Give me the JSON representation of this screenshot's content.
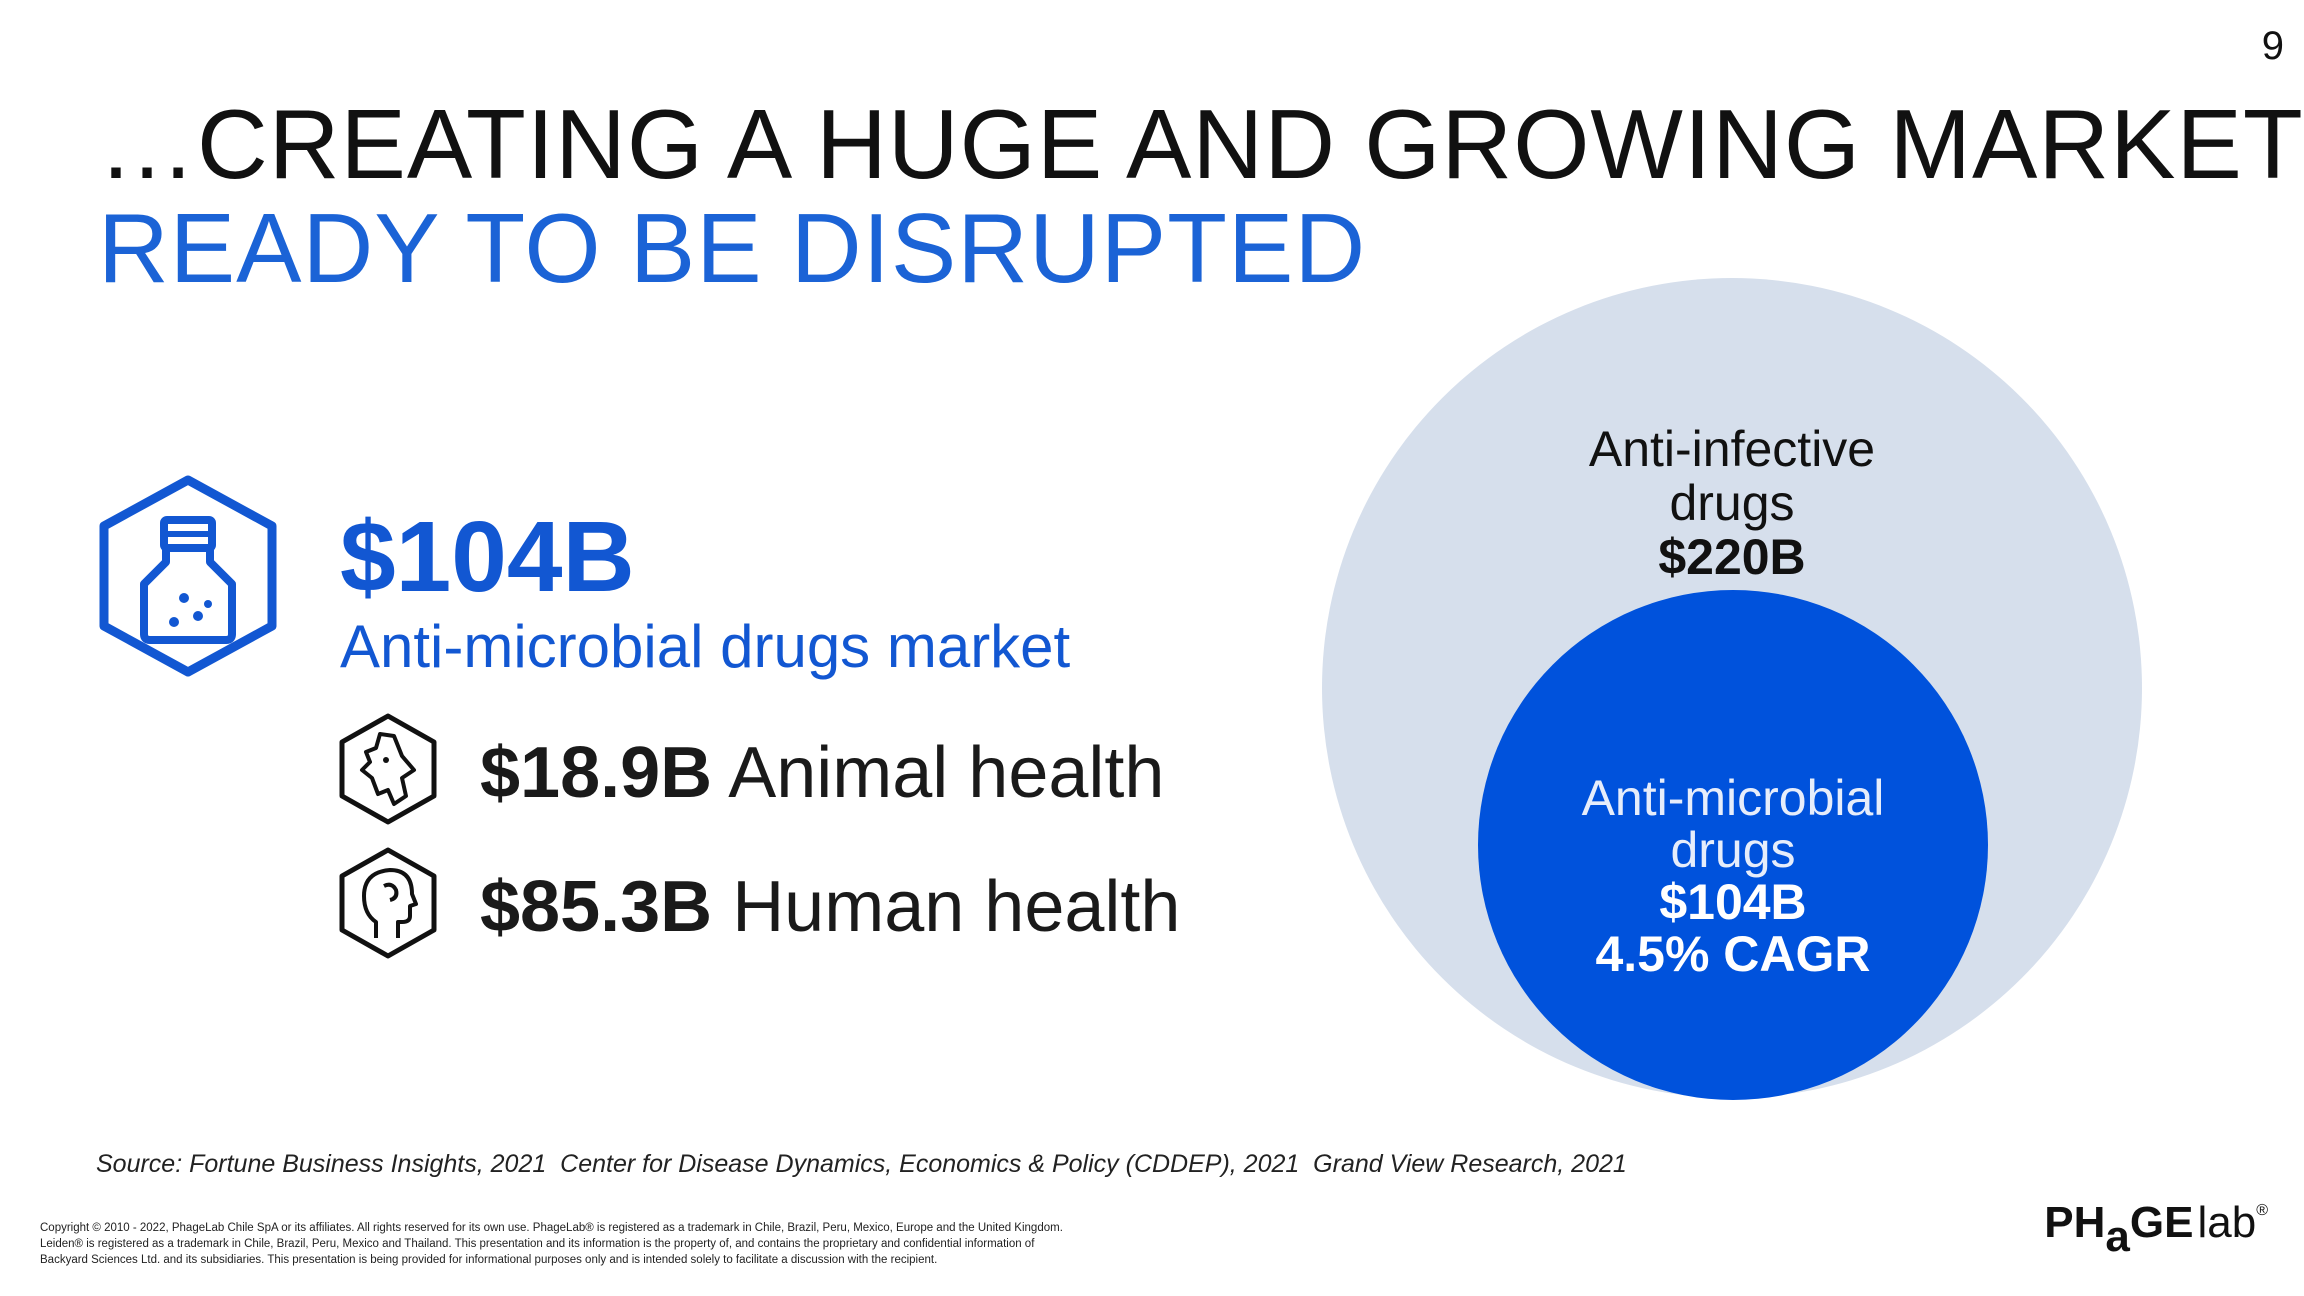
{
  "page": {
    "number": "9"
  },
  "title": {
    "line1": "…CREATING A HUGE AND GROWING MARKET",
    "line2": "READY TO BE DISRUPTED"
  },
  "market": {
    "total_value": "$104B",
    "total_label": "Anti-microbial drugs market",
    "segments": [
      {
        "value": "$18.9B",
        "label": "Animal health",
        "icon": "animal-head-icon"
      },
      {
        "value": "$85.3B",
        "label": "Human health",
        "icon": "human-head-icon"
      }
    ],
    "main_icon": "medicine-bottle-icon"
  },
  "circles": {
    "outer": {
      "name_line1": "Anti-infective",
      "name_line2": "drugs",
      "value": "$220B"
    },
    "inner": {
      "name_line1": "Anti-microbial",
      "name_line2": "drugs",
      "value": "$104B",
      "growth": "4.5% CAGR"
    }
  },
  "source": "Source: Fortune Business Insights, 2021  Center for Disease Dynamics, Economics & Policy (CDDEP), 2021  Grand View Research, 2021",
  "copyright": {
    "line1": "Copyright © 2010 - 2022, PhageLab Chile SpA or its affiliates. All rights reserved for its own use. PhageLab® is registered as a trademark in Chile, Brazil, Peru, Mexico, Europe and the United Kingdom.",
    "line2": "Leiden® is registered as a trademark in Chile, Brazil, Peru, Mexico and Thailand. This presentation and its information is the property of, and contains the proprietary and confidential information of",
    "line3": "Backyard Sciences Ltd. and its subsidiaries. This presentation is being provided for informational purposes only and is intended solely to facilitate a discussion with the recipient."
  },
  "logo": {
    "part1": "PH",
    "part2": "a",
    "part3": "GE",
    "part4": "lab",
    "mark": "®"
  },
  "colors": {
    "accent": "#1257d2",
    "inner_circle": "#0052dc",
    "outer_circle": "#d6dfec"
  }
}
